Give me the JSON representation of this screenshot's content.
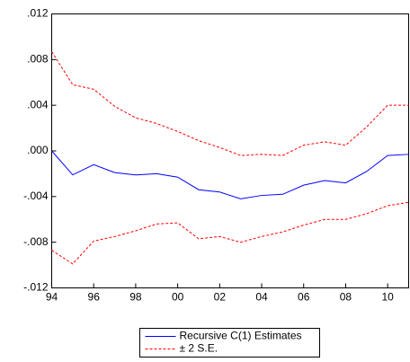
{
  "chart_data": {
    "type": "line",
    "categories": [
      "94",
      null,
      "96",
      null,
      "98",
      null,
      "00",
      null,
      "02",
      null,
      "04",
      null,
      "06",
      null,
      "08",
      null,
      "10",
      null
    ],
    "series": [
      {
        "name": "Recursive C(1) Estimates",
        "color": "#0000ff",
        "dash": "solid",
        "values": [
          0.0,
          -0.0021,
          -0.0012,
          -0.0019,
          -0.0021,
          -0.002,
          -0.0023,
          -0.0034,
          -0.0036,
          -0.0042,
          -0.0039,
          -0.0038,
          -0.003,
          -0.0026,
          -0.0028,
          -0.0018,
          -0.0004,
          -0.0003
        ]
      },
      {
        "name": "± 2 S.E.",
        "color": "#ff0000",
        "dash": "dashed",
        "values": [
          0.0087,
          0.0058,
          0.0054,
          0.0039,
          0.0029,
          0.0024,
          0.0017,
          0.0009,
          0.0003,
          -0.0004,
          -0.0003,
          -0.0004,
          0.0005,
          0.0008,
          0.0005,
          0.0021,
          0.004,
          0.004
        ]
      },
      {
        "color": "#ff0000",
        "dash": "dashed",
        "values": [
          -0.0087,
          -0.0099,
          -0.0079,
          -0.0075,
          -0.007,
          -0.0064,
          -0.0063,
          -0.0077,
          -0.0075,
          -0.008,
          -0.0075,
          -0.0071,
          -0.0065,
          -0.006,
          -0.006,
          -0.0055,
          -0.0048,
          -0.0045
        ]
      }
    ],
    "ylim": [
      -0.012,
      0.012
    ],
    "yticks": [
      {
        "value": -0.012,
        "label": "-.012"
      },
      {
        "value": -0.008,
        "label": "-.008"
      },
      {
        "value": -0.004,
        "label": "-.004"
      },
      {
        "value": 0,
        "label": ".000"
      },
      {
        "value": 0.004,
        "label": ".004"
      },
      {
        "value": 0.008,
        "label": ".008"
      },
      {
        "value": 0.012,
        "label": ".012"
      }
    ],
    "grid": false,
    "legend": "bottom"
  }
}
